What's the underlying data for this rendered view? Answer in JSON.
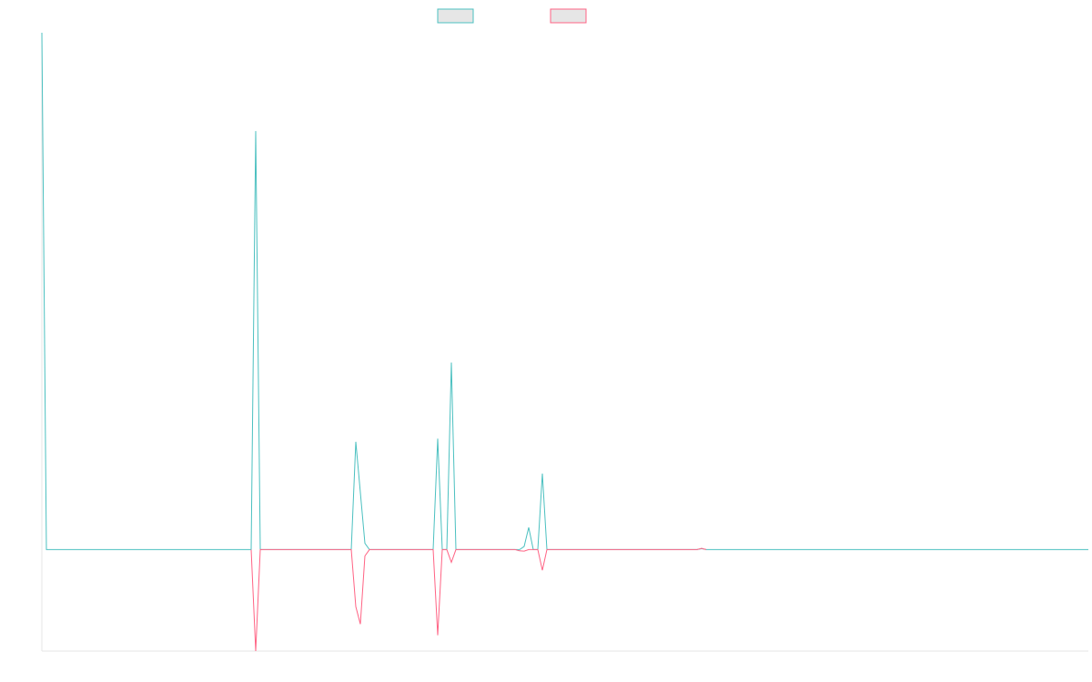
{
  "chart_data": {
    "type": "line",
    "title": "",
    "xlabel": "",
    "ylabel": "",
    "legend_placement": "top-center",
    "grid": false,
    "xlim": [
      0,
      230
    ],
    "ylim": [
      -0.32,
      1.63
    ],
    "series": [
      {
        "color": "#4bc0c0",
        "points": [
          [
            0,
            1.63
          ],
          [
            1,
            0
          ],
          [
            46,
            0
          ],
          [
            47,
            1.32
          ],
          [
            48,
            0
          ],
          [
            68,
            0
          ],
          [
            69,
            0.34
          ],
          [
            71,
            0.02
          ],
          [
            72,
            0
          ],
          [
            86,
            0
          ],
          [
            87,
            0.35
          ],
          [
            88,
            0
          ],
          [
            89,
            0
          ],
          [
            90,
            0.59
          ],
          [
            91,
            0
          ],
          [
            105,
            0
          ],
          [
            106,
            0.01
          ],
          [
            107,
            0.07
          ],
          [
            108,
            0
          ],
          [
            109,
            0
          ],
          [
            110,
            0.24
          ],
          [
            111,
            0
          ],
          [
            144,
            0
          ],
          [
            145,
            0.003
          ],
          [
            146,
            0
          ],
          [
            230,
            0
          ]
        ]
      },
      {
        "color": "#ff6384",
        "points": [
          [
            46,
            0
          ],
          [
            47,
            -0.32
          ],
          [
            48,
            0
          ],
          [
            68,
            0
          ],
          [
            69,
            -0.18
          ],
          [
            70,
            -0.235
          ],
          [
            71,
            -0.02
          ],
          [
            72,
            0
          ],
          [
            86,
            0
          ],
          [
            87,
            -0.27
          ],
          [
            88,
            0
          ],
          [
            89,
            0
          ],
          [
            90,
            -0.04
          ],
          [
            91,
            0
          ],
          [
            104,
            0
          ],
          [
            105,
            -0.004
          ],
          [
            106,
            -0.005
          ],
          [
            107,
            0
          ],
          [
            109,
            0
          ],
          [
            110,
            -0.065
          ],
          [
            111,
            0
          ],
          [
            144,
            0
          ],
          [
            145,
            0.004
          ],
          [
            146,
            0
          ]
        ]
      }
    ]
  }
}
